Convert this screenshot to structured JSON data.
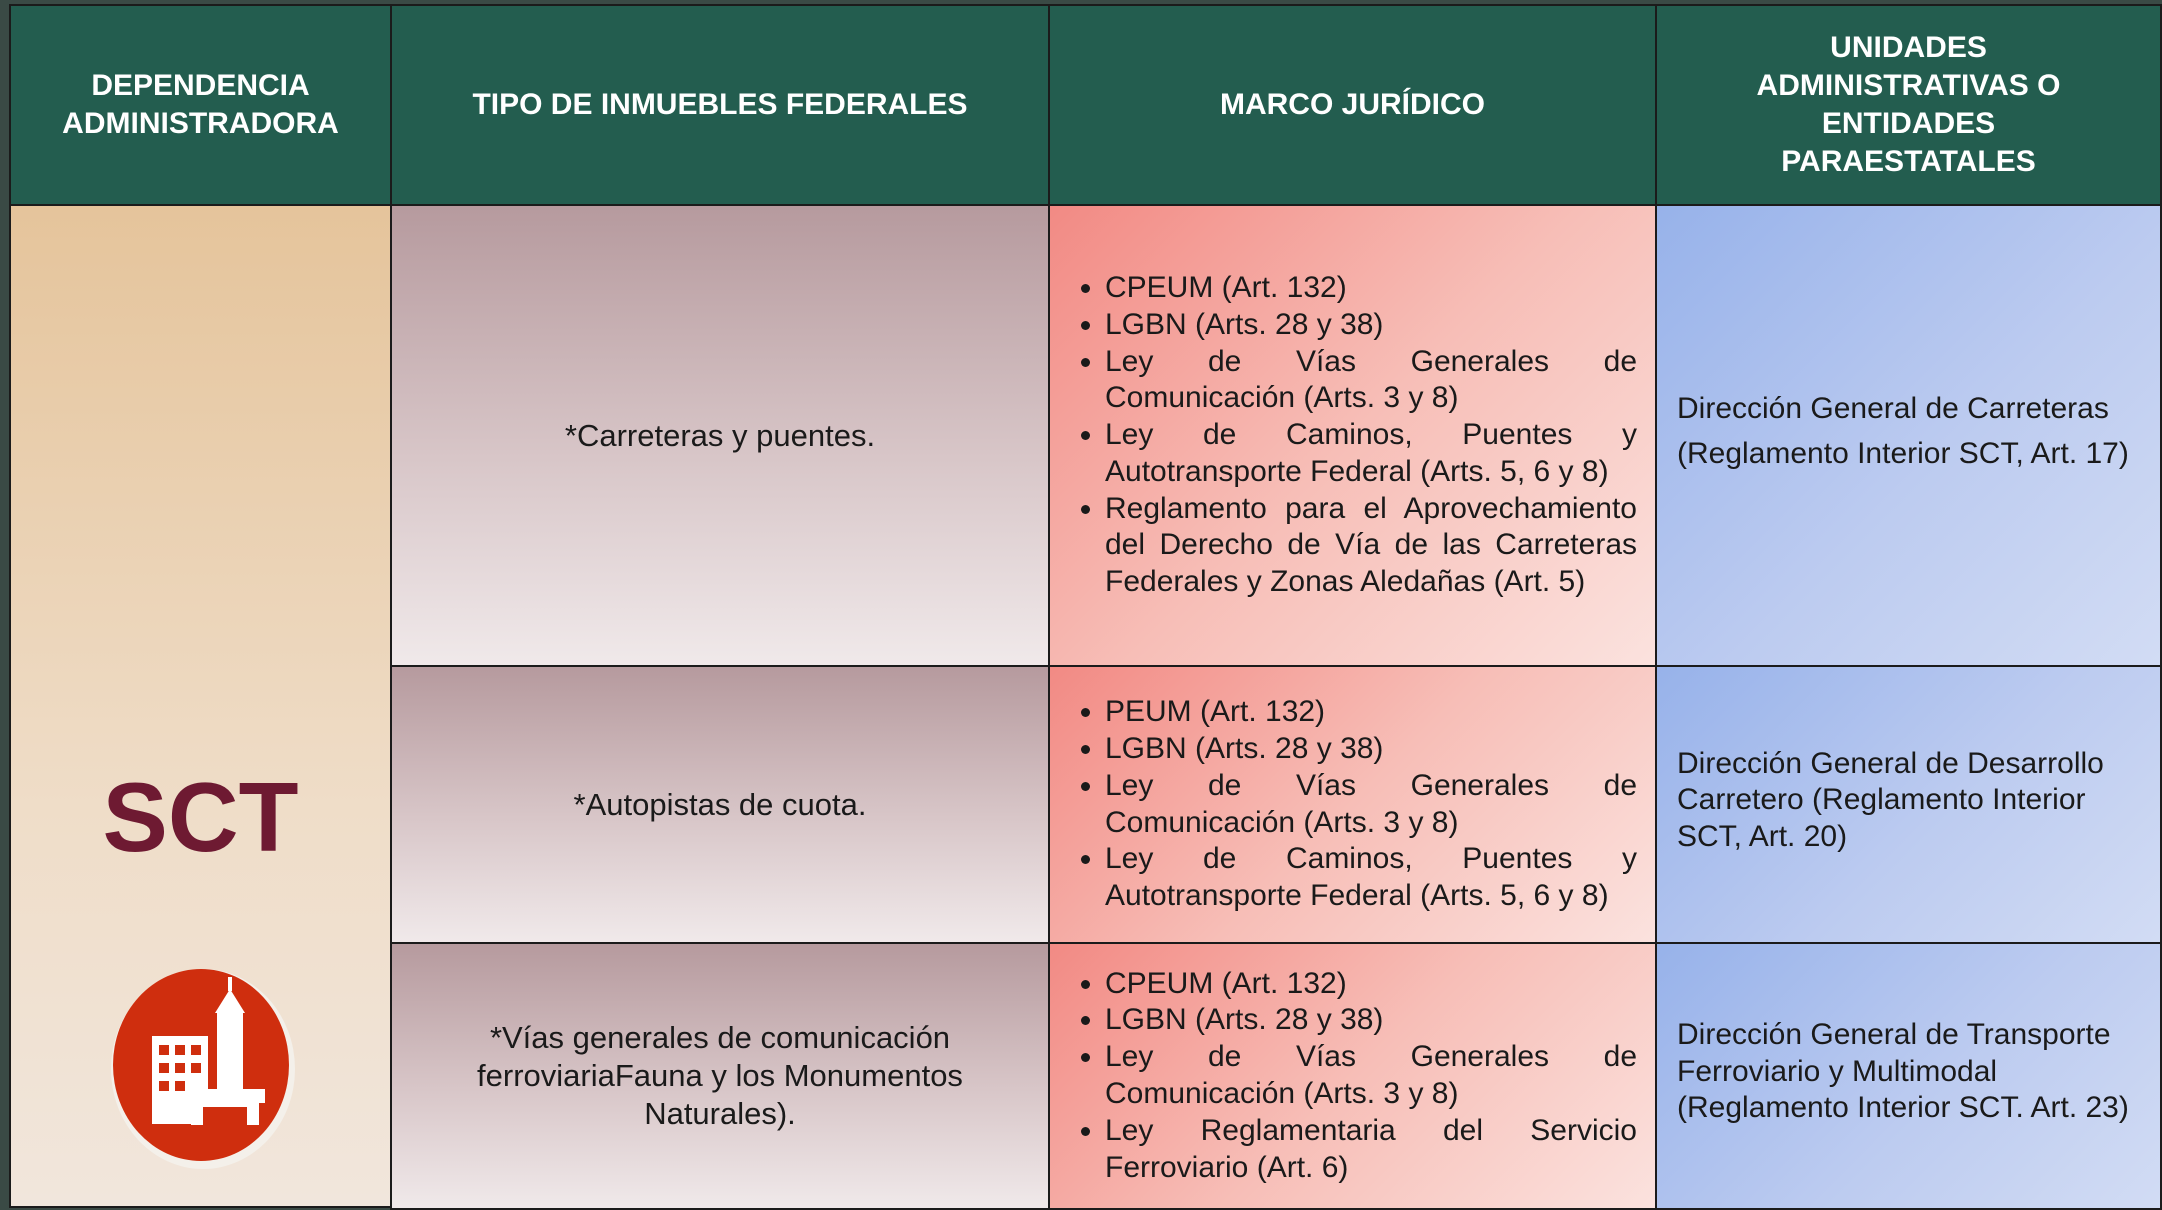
{
  "header": {
    "columns": [
      "DEPENDENCIA ADMINISTRADORA",
      "TIPO DE INMUEBLES FEDERALES",
      "MARCO JURÍDICO",
      "UNIDADES ADMINISTRATIVAS O ENTIDADES PARAESTATALES"
    ]
  },
  "dependencia": "SCT",
  "rows": [
    {
      "tipo": "*Carreteras y puentes.",
      "marco": [
        "CPEUM (Art. 132)",
        "LGBN (Arts. 28 y 38)",
        "Ley de Vías Generales de Comunicación (Arts. 3 y 8)",
        "Ley de Caminos, Puentes y Autotransporte Federal (Arts. 5, 6 y 8)",
        "Reglamento para el Aprovechamiento del Derecho de Vía de las Carreteras Federales y Zonas Aledañas (Art. 5)"
      ],
      "unidades": [
        "Dirección General de Carreteras",
        "(Reglamento Interior SCT, Art. 17)"
      ]
    },
    {
      "tipo": "*Autopistas de cuota.",
      "marco": [
        "PEUM (Art. 132)",
        "LGBN (Arts. 28 y 38)",
        "Ley de Vías Generales de Comunicación (Arts. 3 y 8)",
        "Ley de Caminos, Puentes y Autotransporte Federal (Arts. 5, 6 y 8)"
      ],
      "unidades": [
        "Dirección General de Desarrollo Carretero (Reglamento Interior SCT, Art. 20)"
      ]
    },
    {
      "tipo": "*Vías generales de comunicación ferroviariaFauna y los Monumentos Naturales).",
      "marco": [
        "CPEUM (Art. 132)",
        "LGBN (Arts. 28 y 38)",
        "Ley de Vías Generales de Comunicación (Arts. 3 y 8)",
        "Ley Reglamentaria del Servicio Ferroviario (Art. 6)"
      ],
      "unidades": [
        "Dirección General de Transporte Ferroviario y Multimodal (Reglamento Interior SCT. Art. 23)"
      ]
    }
  ]
}
